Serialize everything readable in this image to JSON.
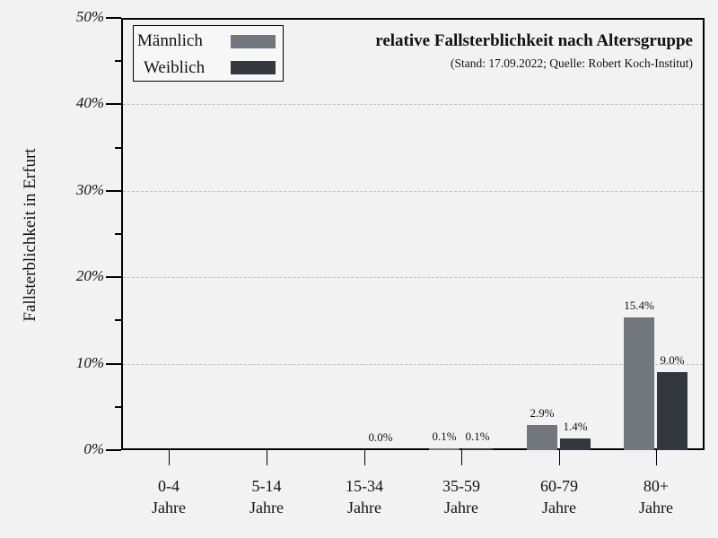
{
  "chart_data": {
    "type": "bar",
    "title": "relative Fallsterblichkeit nach Altersgruppe",
    "subtitle": "(Stand: 17.09.2022; Quelle: Robert Koch-Institut)",
    "xlabel": "",
    "ylabel": "Fallsterblichkeit in Erfurt",
    "ylim": [
      0,
      50
    ],
    "yticks": [
      "0%",
      "10%",
      "20%",
      "30%",
      "40%",
      "50%"
    ],
    "grid": true,
    "legend_position": "upper-left",
    "categories": [
      "0-4 Jahre",
      "5-14 Jahre",
      "15-34 Jahre",
      "35-59 Jahre",
      "60-79 Jahre",
      "80+ Jahre"
    ],
    "category_lines": [
      [
        "0-4",
        "Jahre"
      ],
      [
        "5-14",
        "Jahre"
      ],
      [
        "15-34",
        "Jahre"
      ],
      [
        "35-59",
        "Jahre"
      ],
      [
        "60-79",
        "Jahre"
      ],
      [
        "80+",
        "Jahre"
      ]
    ],
    "series": [
      {
        "name": "Männlich",
        "color": "#72767d",
        "values": [
          null,
          null,
          0.0,
          0.1,
          2.9,
          15.4
        ],
        "labels": [
          "",
          "",
          "",
          "0.1%",
          "2.9%",
          "15.4%"
        ]
      },
      {
        "name": "Weiblich",
        "color": "#33373e",
        "values": [
          null,
          null,
          null,
          0.1,
          1.4,
          9.0
        ],
        "labels": [
          "",
          "",
          "",
          "0.1%",
          "1.4%",
          "9.0%"
        ]
      }
    ],
    "extra_labels": [
      {
        "category": "15-34 Jahre",
        "text": "0.0%"
      }
    ]
  },
  "legend": {
    "items": [
      {
        "label": "Männlich",
        "color": "#72767d"
      },
      {
        "label": "Weiblich",
        "color": "#33373e"
      }
    ]
  },
  "colors": {
    "background": "#f2f2f2",
    "male": "#72767d",
    "female": "#33373e",
    "grid": "#bdbdbd"
  }
}
